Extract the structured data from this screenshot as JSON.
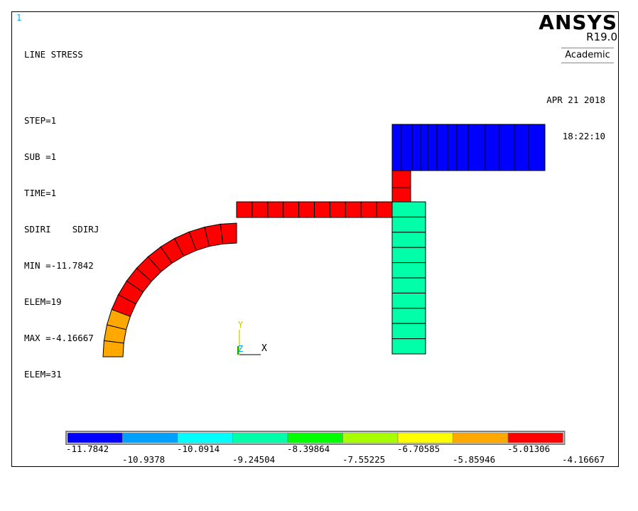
{
  "window": {
    "number": "1"
  },
  "info": {
    "title": "LINE STRESS",
    "step": "STEP=1",
    "sub": "SUB =1",
    "time": "TIME=1",
    "components": "SDIRI    SDIRJ",
    "min": "MIN =-11.7842",
    "min_elem": "ELEM=19",
    "max": "MAX =-4.16667",
    "max_elem": "ELEM=31"
  },
  "brand": {
    "name": "ANSYS",
    "version": "R19.0",
    "edition": "Academic"
  },
  "timestamp": {
    "date": "APR 21 2018",
    "time": "18:22:10"
  },
  "triad": {
    "y": "Y",
    "z": "Z",
    "x": "X"
  },
  "legend": {
    "colors": [
      "#0000ff",
      "#00a0ff",
      "#00ffff",
      "#00ffa8",
      "#00ff00",
      "#a8ff00",
      "#ffff00",
      "#ffa800",
      "#ff0000"
    ],
    "labels_top": [
      "-11.7842",
      "-10.0914",
      "-8.39864",
      "-6.70585",
      "-5.01306"
    ],
    "labels_bottom": [
      "-10.9378",
      "-9.24504",
      "-7.55225",
      "-5.85946",
      "-4.16667"
    ]
  },
  "colors": {
    "red": "#ff0000",
    "orange": "#ffa800",
    "blue": "#0000ff",
    "green": "#00ffa8"
  }
}
